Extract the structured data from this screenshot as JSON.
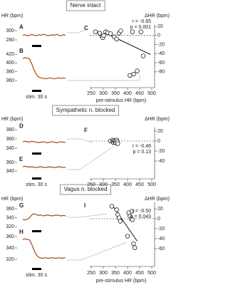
{
  "chart_data": [
    {
      "type": "line",
      "panel": "A",
      "section": "Nerve intact",
      "ylabel": "HR (bpm)",
      "color": "#a34a17",
      "ylim": [
        270,
        310
      ],
      "yticks": [
        280,
        300
      ],
      "values": [
        290,
        291,
        289,
        290,
        292,
        290,
        289,
        291,
        290,
        292,
        291,
        289,
        290,
        291,
        290,
        292,
        290,
        289,
        291,
        290
      ]
    },
    {
      "type": "line",
      "panel": "B",
      "stim_label": "stim. 30 s",
      "color": "#a34a17",
      "ylim": [
        350,
        430
      ],
      "yticks": [
        360,
        380,
        400,
        420
      ],
      "values": [
        410,
        412,
        411,
        409,
        398,
        384,
        374,
        368,
        366,
        365,
        364,
        365,
        366,
        365,
        364,
        365,
        366,
        365,
        366,
        365
      ]
    },
    {
      "type": "scatter",
      "panel": "C",
      "ylabel": "ΔHR (bpm)",
      "xlabel": "pre-stimulus HR (bpm)",
      "xlim": [
        250,
        500
      ],
      "xticks": [
        250,
        300,
        350,
        400,
        450,
        500
      ],
      "ylim": [
        -110,
        20
      ],
      "yticks": [
        20,
        0,
        -20,
        -40,
        -60,
        -80
      ],
      "x": [
        268,
        285,
        295,
        298,
        302,
        310,
        318,
        330,
        345,
        355,
        365,
        372,
        420,
        455,
        410,
        425,
        440,
        465
      ],
      "values": [
        8,
        5,
        -2,
        -5,
        0,
        8,
        6,
        4,
        -3,
        -8,
        5,
        10,
        8,
        8,
        -88,
        -85,
        -78,
        -45
      ],
      "fit_x": [
        310,
        495
      ],
      "fit_values": [
        5,
        -42
      ],
      "annotations": [
        "r = -0.65",
        "p = 0.001"
      ]
    },
    {
      "type": "line",
      "panel": "D",
      "section": "Sympathetic n. blocked",
      "ylabel": "HR (bpm)",
      "color": "#a34a17",
      "ylim": [
        330,
        390
      ],
      "yticks": [
        340,
        360,
        380
      ],
      "values": [
        354,
        355,
        354,
        353,
        355,
        354,
        353,
        352,
        353,
        354,
        353,
        352,
        353,
        354,
        353,
        352,
        353,
        354,
        353,
        352
      ]
    },
    {
      "type": "line",
      "panel": "E",
      "stim_label": "stim. 30 s",
      "color": "#a34a17",
      "ylim": [
        330,
        370
      ],
      "yticks": [
        340,
        360
      ],
      "values": [
        350,
        351,
        350,
        349,
        350,
        349,
        348,
        349,
        350,
        349,
        348,
        349,
        350,
        349,
        348,
        349,
        350,
        349,
        348,
        349
      ]
    },
    {
      "type": "scatter",
      "panel": "F",
      "ylabel": "ΔHR (bpm)",
      "xlim": [
        250,
        500
      ],
      "xticks": [
        250,
        300,
        350,
        400,
        450,
        500
      ],
      "ylim": [
        -50,
        25
      ],
      "yticks": [
        20,
        0,
        -20,
        -40
      ],
      "x": [
        330,
        338,
        340,
        342,
        345,
        348,
        350,
        352,
        355,
        358,
        360
      ],
      "values": [
        0,
        2,
        -1,
        -3,
        1,
        -2,
        0,
        -4,
        2,
        -1,
        -5
      ],
      "fit_x": [
        328,
        362
      ],
      "fit_values": [
        3,
        -3
      ],
      "annotations": [
        "r = -0.46",
        "p = 0.13"
      ]
    },
    {
      "type": "line",
      "panel": "G",
      "section": "Vagus n. blocked",
      "ylabel": "HR (bpm)",
      "color": "#a34a17",
      "ylim": [
        310,
        370
      ],
      "yticks": [
        320,
        340,
        360
      ],
      "values": [
        336,
        335,
        336,
        340,
        346,
        349,
        347,
        345,
        346,
        344,
        345,
        346,
        345,
        344,
        345,
        346,
        345,
        344,
        345,
        344
      ]
    },
    {
      "type": "line",
      "panel": "H",
      "stim_label": "stim. 30 s",
      "color": "#a34a17",
      "ylim": [
        310,
        370
      ],
      "yticks": [
        320,
        340,
        360
      ],
      "values": [
        355,
        356,
        355,
        354,
        346,
        336,
        328,
        324,
        322,
        322,
        323,
        322,
        322,
        323,
        322,
        322,
        323,
        322,
        322,
        323
      ]
    },
    {
      "type": "scatter",
      "panel": "I",
      "ylabel": "ΔHR (bpm)",
      "xlabel": "pre-stimulus HR (bpm)",
      "xlim": [
        250,
        500
      ],
      "xticks": [
        250,
        300,
        350,
        400,
        450,
        500
      ],
      "ylim": [
        -70,
        30
      ],
      "yticks": [
        20,
        0,
        -20,
        -40,
        -60
      ],
      "x": [
        335,
        355,
        360,
        365,
        370,
        405,
        410,
        415,
        418,
        420,
        400,
        425,
        430
      ],
      "values": [
        25,
        18,
        8,
        2,
        -5,
        12,
        5,
        0,
        15,
        -2,
        -35,
        -50,
        -58
      ],
      "fit_x": [
        340,
        440
      ],
      "fit_values": [
        25,
        -45
      ],
      "annotations": [
        "r = -0.50",
        "p = 0.043"
      ]
    }
  ]
}
